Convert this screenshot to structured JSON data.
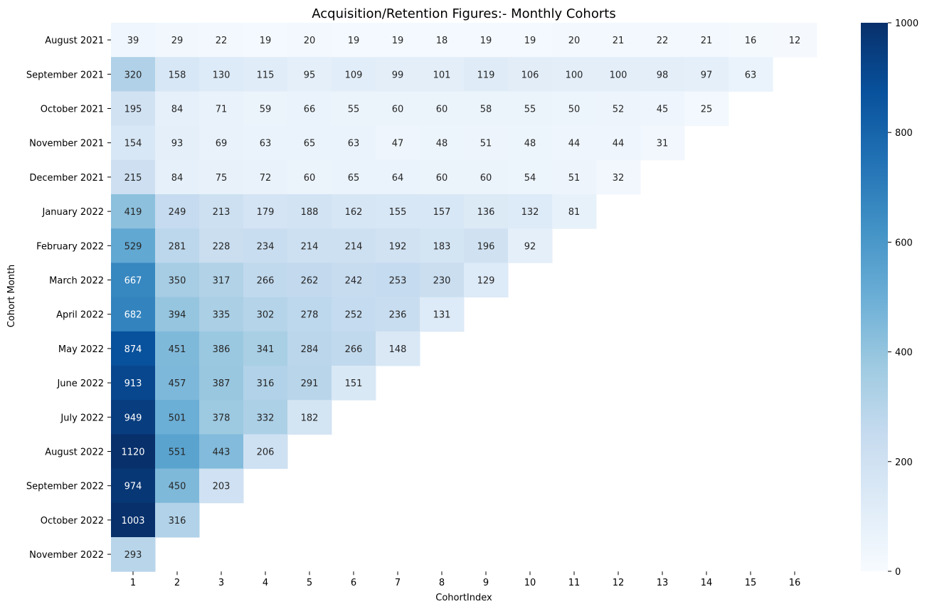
{
  "chart_data": {
    "type": "heatmap",
    "title": "Acquisition/Retention Figures:- Monthly Cohorts",
    "xlabel": "CohortIndex",
    "ylabel": "Cohort Month",
    "x": [
      "1",
      "2",
      "3",
      "4",
      "5",
      "6",
      "7",
      "8",
      "9",
      "10",
      "11",
      "12",
      "13",
      "14",
      "15",
      "16"
    ],
    "y": [
      "August 2021",
      "September 2021",
      "October 2021",
      "November 2021",
      "December 2021",
      "January 2022",
      "February 2022",
      "March 2022",
      "April 2022",
      "May 2022",
      "June 2022",
      "July 2022",
      "August 2022",
      "September 2022",
      "October 2022",
      "November 2022"
    ],
    "values": [
      [
        39,
        29,
        22,
        19,
        20,
        19,
        19,
        18,
        19,
        19,
        20,
        21,
        22,
        21,
        16,
        12
      ],
      [
        320,
        158,
        130,
        115,
        95,
        109,
        99,
        101,
        119,
        106,
        100,
        100,
        98,
        97,
        63
      ],
      [
        195,
        84,
        71,
        59,
        66,
        55,
        60,
        60,
        58,
        55,
        50,
        52,
        45,
        25
      ],
      [
        154,
        93,
        69,
        63,
        65,
        63,
        47,
        48,
        51,
        48,
        44,
        44,
        31
      ],
      [
        215,
        84,
        75,
        72,
        60,
        65,
        64,
        60,
        60,
        54,
        51,
        32
      ],
      [
        419,
        249,
        213,
        179,
        188,
        162,
        155,
        157,
        136,
        132,
        81
      ],
      [
        529,
        281,
        228,
        234,
        214,
        214,
        192,
        183,
        196,
        92
      ],
      [
        667,
        350,
        317,
        266,
        262,
        242,
        253,
        230,
        129
      ],
      [
        682,
        394,
        335,
        302,
        278,
        252,
        236,
        131
      ],
      [
        874,
        451,
        386,
        341,
        284,
        266,
        148
      ],
      [
        913,
        457,
        387,
        316,
        291,
        151
      ],
      [
        949,
        501,
        378,
        332,
        182
      ],
      [
        1120,
        551,
        443,
        206
      ],
      [
        974,
        450,
        203
      ],
      [
        1003,
        316
      ],
      [
        293
      ]
    ],
    "colorbar": {
      "range": [
        0,
        1000
      ],
      "ticks": [
        "0",
        "200",
        "400",
        "600",
        "800",
        "1000"
      ],
      "colormap": "Blues"
    }
  }
}
